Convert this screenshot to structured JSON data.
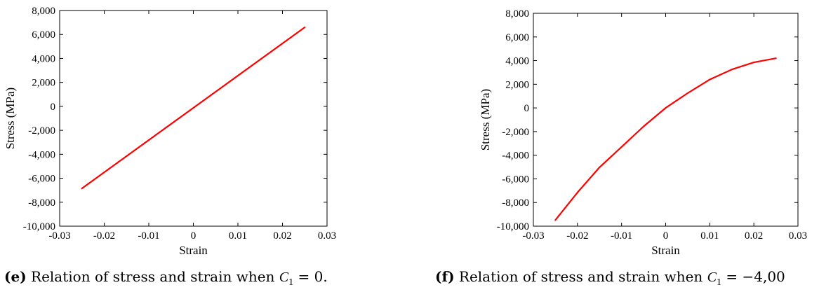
{
  "chart_data": [
    {
      "type": "line",
      "xlabel": "Strain",
      "ylabel": "Stress (MPa)",
      "xlim": [
        -0.03,
        0.03
      ],
      "ylim": [
        -10000,
        8000
      ],
      "xticks": [
        -0.03,
        -0.02,
        -0.01,
        0,
        0.01,
        0.02,
        0.03
      ],
      "xtick_labels": [
        "-0.03",
        "-0.02",
        "-0.01",
        "0",
        "0.01",
        "0.02",
        "0.03"
      ],
      "yticks": [
        8000,
        6000,
        4000,
        2000,
        0,
        -2000,
        -4000,
        -6000,
        -8000,
        -10000
      ],
      "ytick_labels": [
        "8,000",
        "6,000",
        "4,000",
        "2,000",
        "0",
        "-2,000",
        "-4,000",
        "-6,000",
        "-8,000",
        "-10,000"
      ],
      "grid": false,
      "series": [
        {
          "color": "#ff0000",
          "x": [
            -0.025,
            0.025
          ],
          "y": [
            -6850,
            6600
          ]
        }
      ],
      "caption": {
        "letter": "(e)",
        "text": " Relation of stress and strain when ",
        "var": "C",
        "sub": "1",
        "tail": " = 0."
      }
    },
    {
      "type": "line",
      "xlabel": "Strain",
      "ylabel": "Stress (MPa)",
      "xlim": [
        -0.03,
        0.03
      ],
      "ylim": [
        -10000,
        8000
      ],
      "xticks": [
        -0.03,
        -0.02,
        -0.01,
        0,
        0.01,
        0.02,
        0.03
      ],
      "xtick_labels": [
        "-0.03",
        "-0.02",
        "-0.01",
        "0",
        "0.01",
        "0.02",
        "0.03"
      ],
      "yticks": [
        8000,
        6000,
        4000,
        2000,
        0,
        -2000,
        -4000,
        -6000,
        -8000,
        -10000
      ],
      "ytick_labels": [
        "8,000",
        "6,000",
        "4,000",
        "2,000",
        "0",
        "-2,000",
        "-4,000",
        "-6,000",
        "-8,000",
        "-10,000"
      ],
      "grid": false,
      "series": [
        {
          "color": "#ff0000",
          "x": [
            -0.025,
            -0.02,
            -0.015,
            -0.01,
            -0.005,
            0,
            0.005,
            0.01,
            0.015,
            0.02,
            0.025
          ],
          "y": [
            -9480,
            -7150,
            -5020,
            -3300,
            -1560,
            0,
            1250,
            2400,
            3250,
            3850,
            4200
          ]
        }
      ],
      "caption": {
        "letter": "(f)",
        "text": " Relation of stress and strain when ",
        "var": "C",
        "sub": "1",
        "tail": " = −4,00"
      }
    }
  ]
}
